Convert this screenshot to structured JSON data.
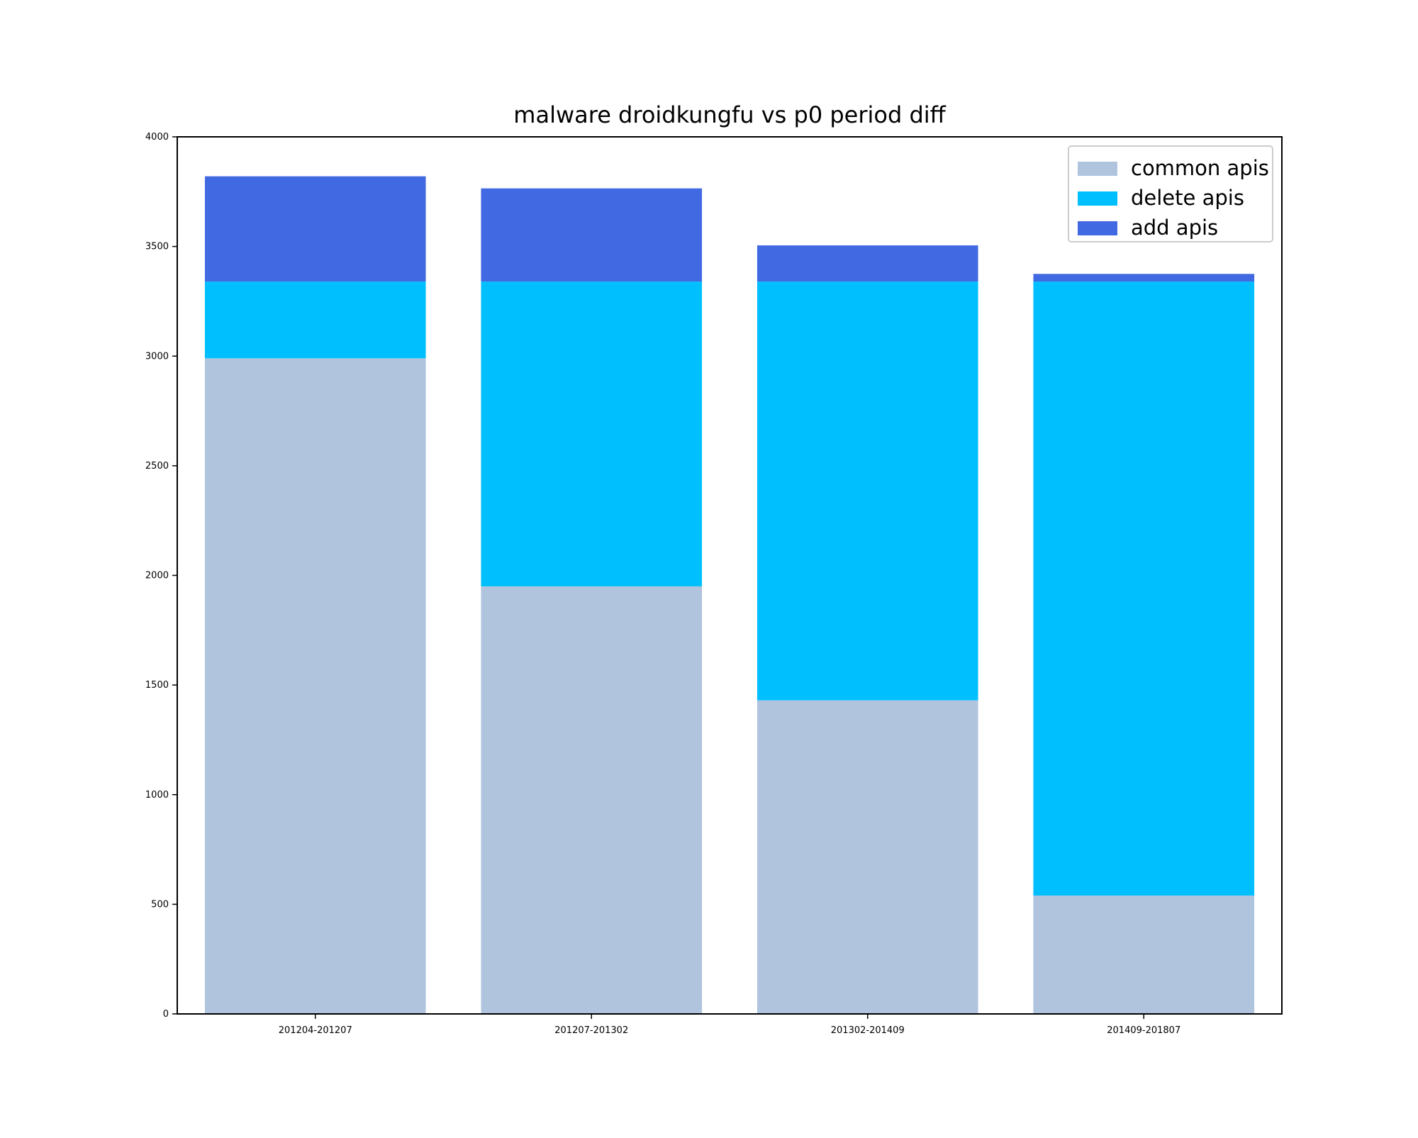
{
  "chart_data": {
    "type": "bar",
    "stacked": true,
    "title": "malware droidkungfu vs p0 period diff",
    "xlabel": "",
    "ylabel": "",
    "categories": [
      "201204-201207",
      "201207-201302",
      "201302-201409",
      "201409-201807"
    ],
    "ylim": [
      0,
      4000
    ],
    "yticks": [
      "0",
      "500",
      "1000",
      "1500",
      "2000",
      "2500",
      "3000",
      "3500",
      "4000"
    ],
    "grid": false,
    "legend_position": "top-right",
    "series": [
      {
        "name": "common apis",
        "color": "#b0c4de",
        "values": [
          2990,
          1950,
          1430,
          540
        ]
      },
      {
        "name": "delete apis",
        "color": "#00bfff",
        "values": [
          350,
          1390,
          1910,
          2800
        ]
      },
      {
        "name": "add apis",
        "color": "#4169e1",
        "values": [
          480,
          425,
          165,
          35
        ]
      }
    ]
  }
}
